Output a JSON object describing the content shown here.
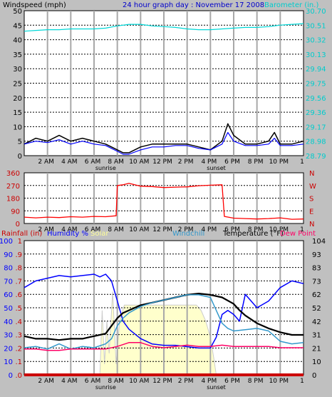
{
  "colors": {
    "panel_bg": "#c0c0c0",
    "plot_bg": "#ffffff",
    "grid": "#000000",
    "hour_line": "#a8a8a8",
    "wind": "#000000",
    "wind_avg": "#0000ff",
    "wind_dir": "#ff0000",
    "barometer": "#00d8d8",
    "temperature": "#000000",
    "humidity": "#0000ff",
    "windchill": "#3399cc",
    "dewpoint": "#ff0066",
    "rainfall": "#cc0000",
    "solar_fill": "#ffffcc",
    "solar_edge": "#cccccc",
    "heading": "#0000cc",
    "label_red": "#cc0000",
    "label_cyan": "#00cccc",
    "label_blue": "#0000ff",
    "label_yellow": "#ffff99",
    "label_windchill": "#3399cc",
    "label_black": "#000000",
    "label_dew": "#ff0066"
  },
  "chart_data": [
    {
      "type": "line",
      "title": "24 hour graph day : November 17 2008",
      "left_label": "Windspeed (mph)",
      "right_label": "Barometer (in.)",
      "x_ticks": [
        "2 AM",
        "4 AM",
        "6 AM",
        "8 AM",
        "10 AM",
        "12 PM",
        "2 PM",
        "4 PM",
        "6 PM",
        "8 PM",
        "10 PM",
        "1"
      ],
      "sunrise_label": "sunrise",
      "sunset_label": "sunset",
      "xlim": [
        0,
        24
      ],
      "left_ticks": [
        "0",
        "5",
        "10",
        "15",
        "20",
        "25",
        "30",
        "35",
        "40",
        "45",
        "50"
      ],
      "ylim_left": [
        0,
        50
      ],
      "right_ticks": [
        "28.79",
        "28.98",
        "29.17",
        "29.36",
        "29.56",
        "29.75",
        "29.94",
        "30.13",
        "30.32",
        "30.51",
        "30.70"
      ],
      "ylim_right": [
        28.79,
        30.7
      ],
      "series": [
        {
          "key": "wind",
          "x": [
            0,
            1,
            2,
            3,
            4,
            5,
            6,
            7,
            7.5,
            8,
            8.5,
            9,
            10,
            11,
            12,
            13,
            14,
            15,
            16,
            17,
            17.5,
            18,
            19,
            20,
            21,
            21.5,
            22,
            23,
            24
          ],
          "y": [
            4,
            6,
            5,
            7,
            5,
            6,
            5,
            4,
            3,
            2,
            1,
            1,
            3,
            4,
            4,
            4,
            4,
            3,
            2,
            5,
            11,
            7,
            4,
            4,
            5,
            8,
            4,
            4,
            5
          ]
        },
        {
          "key": "wind_avg",
          "x": [
            0,
            1,
            2,
            3,
            4,
            5,
            6,
            7,
            7.5,
            8,
            8.5,
            9,
            10,
            11,
            12,
            13,
            14,
            15,
            16,
            17,
            17.5,
            18,
            19,
            20,
            21,
            21.5,
            22,
            23,
            24
          ],
          "y": [
            4,
            5,
            4.5,
            5.5,
            4,
            5,
            4,
            3.5,
            2.5,
            1.5,
            0.5,
            0.5,
            2,
            3,
            3,
            3.5,
            3.5,
            2.5,
            2,
            4,
            8,
            5,
            3.5,
            3.5,
            4,
            6,
            3.5,
            3.5,
            4
          ]
        },
        {
          "key": "barometer",
          "x": [
            0,
            1,
            2,
            3,
            4,
            5,
            6,
            7,
            8,
            9,
            10,
            11,
            12,
            13,
            14,
            15,
            16,
            17,
            18,
            19,
            20,
            21,
            22,
            23,
            24
          ],
          "y": [
            30.43,
            30.44,
            30.45,
            30.45,
            30.46,
            30.46,
            30.46,
            30.47,
            30.5,
            30.52,
            30.52,
            30.5,
            30.49,
            30.48,
            30.46,
            30.45,
            30.45,
            30.46,
            30.47,
            30.48,
            30.48,
            30.49,
            30.51,
            30.52,
            30.53
          ]
        }
      ]
    },
    {
      "type": "line",
      "x_ticks": [
        "2 AM",
        "4 AM",
        "6 AM",
        "8 AM",
        "10 AM",
        "12 PM",
        "2 PM",
        "4 PM",
        "6 PM",
        "8 PM",
        "10 PM",
        "1"
      ],
      "xlim": [
        0,
        24
      ],
      "left_ticks": [
        "0",
        "90",
        "180",
        "270",
        "360"
      ],
      "ylim": [
        0,
        360
      ],
      "right_ticks": [
        "N",
        "E",
        "S",
        "W",
        "N"
      ],
      "series": [
        {
          "key": "wind_dir",
          "x": [
            0,
            1,
            2,
            3,
            4,
            5,
            6,
            7,
            7.9,
            8,
            8.5,
            9,
            10,
            11,
            12,
            13,
            14,
            15,
            16,
            17,
            17.2,
            18,
            19,
            20,
            21,
            22,
            23,
            24
          ],
          "y": [
            45,
            40,
            45,
            42,
            48,
            45,
            50,
            48,
            55,
            270,
            275,
            285,
            265,
            262,
            255,
            258,
            260,
            268,
            272,
            275,
            50,
            38,
            35,
            32,
            35,
            40,
            30,
            32
          ]
        }
      ]
    },
    {
      "type": "line",
      "rainfall_label": "Rainfall (in)",
      "humidity_label": "Humidity %",
      "solar_label": "Solar",
      "windchill_label": "Windchill",
      "temperature_label": "Temperature (°F)",
      "dewpoint_label": "Dew Point",
      "x_ticks": [
        "2 AM",
        "4 AM",
        "6 AM",
        "8 AM",
        "10 AM",
        "12 PM",
        "2 PM",
        "4 PM",
        "6 PM",
        "8 PM",
        "10 PM",
        "1"
      ],
      "sunrise_label": "sunrise",
      "sunset_label": "sunset",
      "xlim": [
        0,
        24
      ],
      "left_ticks": [
        "0",
        "10",
        "20",
        "30",
        "40",
        "50",
        "60",
        "70",
        "80",
        "90",
        "100"
      ],
      "ylim_humidity": [
        0,
        100
      ],
      "rain_ticks": [
        ".0",
        ".1",
        ".2",
        ".3",
        ".4",
        ".5",
        ".6",
        ".7",
        ".8",
        ".9",
        "1"
      ],
      "ylim_rain": [
        0,
        1
      ],
      "right_ticks": [
        "0",
        "10",
        "21",
        "31",
        "42",
        "52",
        "62",
        "73",
        "83",
        "93",
        "104"
      ],
      "ylim_right": [
        0,
        104
      ],
      "series": [
        {
          "key": "humidity",
          "x": [
            0,
            1,
            2,
            3,
            4,
            5,
            6,
            6.5,
            7,
            7.5,
            8,
            8.5,
            9,
            10,
            11,
            12,
            13,
            14,
            15,
            16,
            16.5,
            17,
            17.5,
            18,
            18.5,
            19,
            20,
            21,
            22,
            23,
            24
          ],
          "y": [
            65,
            70,
            72,
            74,
            73,
            74,
            75,
            73,
            75,
            70,
            55,
            40,
            34,
            27,
            23,
            22,
            22,
            21,
            20,
            20,
            28,
            45,
            48,
            45,
            40,
            60,
            50,
            55,
            65,
            70,
            68
          ]
        },
        {
          "key": "temperature",
          "x": [
            0,
            1,
            2,
            3,
            4,
            5,
            6,
            7,
            7.5,
            8,
            8.5,
            9,
            10,
            11,
            12,
            13,
            14,
            15,
            16,
            17,
            18,
            18.5,
            19,
            20,
            21,
            22,
            23,
            24
          ],
          "y": [
            30,
            28,
            28,
            27,
            28,
            28,
            30,
            32,
            38,
            44,
            48,
            50,
            54,
            56,
            58,
            60,
            62,
            63,
            62,
            60,
            55,
            50,
            46,
            40,
            36,
            33,
            31,
            31
          ]
        },
        {
          "key": "windchill",
          "x": [
            0,
            1,
            2,
            3,
            4,
            5,
            6,
            7,
            7.5,
            8,
            8.5,
            9,
            10,
            11,
            12,
            13,
            14,
            15,
            16,
            17,
            17.5,
            18,
            19,
            20,
            21,
            22,
            23,
            24
          ],
          "y": [
            21,
            22,
            20,
            24,
            20,
            22,
            21,
            24,
            28,
            38,
            44,
            48,
            53,
            56,
            58,
            60,
            62,
            62,
            60,
            40,
            36,
            34,
            35,
            36,
            34,
            26,
            24,
            25
          ]
        },
        {
          "key": "dewpoint",
          "x": [
            0,
            1,
            2,
            3,
            4,
            5,
            6,
            7,
            8,
            9,
            10,
            11,
            12,
            13,
            14,
            15,
            16,
            17,
            18,
            19,
            20,
            21,
            22,
            23,
            24
          ],
          "y": [
            20,
            20,
            19,
            19,
            20,
            20,
            20,
            20,
            22,
            25,
            25,
            22,
            21,
            22,
            23,
            22,
            22,
            23,
            22,
            22,
            22,
            22,
            21,
            21,
            21
          ]
        },
        {
          "key": "solar",
          "x": [
            6.5,
            6.7,
            6.9,
            7.1,
            7.3,
            7.6,
            7.9,
            8.2,
            8.6,
            9,
            10,
            11,
            12,
            13,
            14,
            14.8,
            15.2,
            15.6,
            16,
            16.3,
            16.5
          ],
          "y": [
            0,
            48,
            8,
            40,
            16,
            62,
            8,
            40,
            52,
            52,
            52,
            52,
            52,
            52,
            52,
            52,
            48,
            40,
            28,
            12,
            0
          ]
        },
        {
          "key": "rainfall",
          "x": [
            0,
            24
          ],
          "y": [
            0,
            0
          ]
        }
      ]
    }
  ]
}
